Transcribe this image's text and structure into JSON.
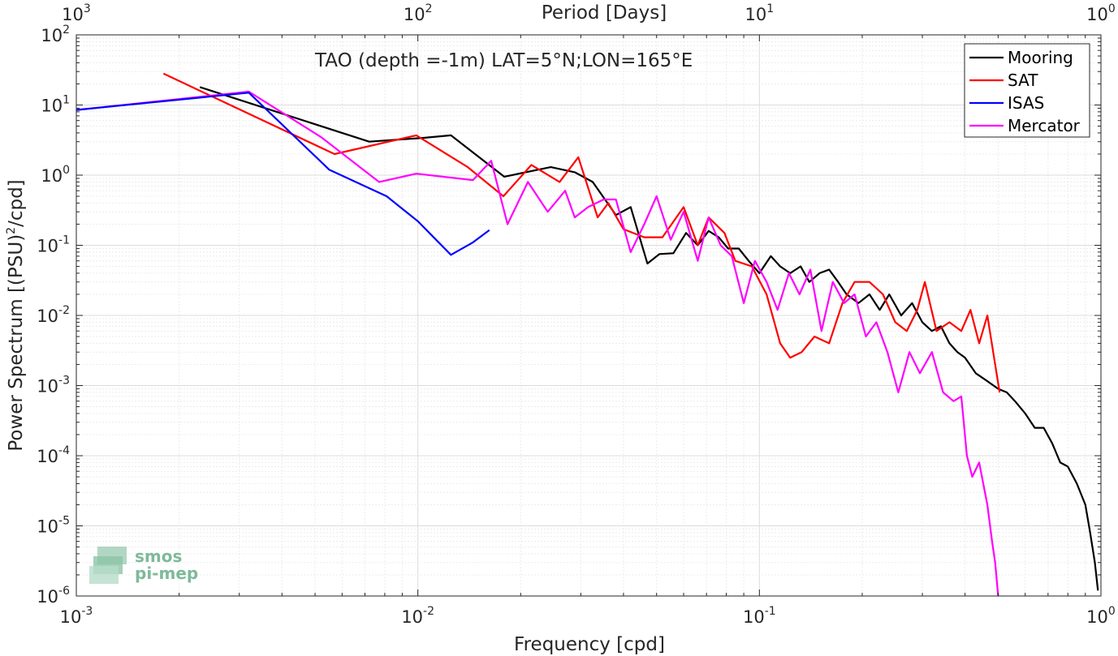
{
  "chart_data": {
    "type": "line",
    "title": "TAO (depth =-1m) LAT=5°N;LON=165°E",
    "xlabel": "Frequency [cpd]",
    "ylabel": "Power Spectrum [(PSU)",
    "ylabel_sup": "2",
    "ylabel_end": "/cpd]",
    "top_xlabel": "Period [Days]",
    "xscale": "log",
    "yscale": "log",
    "xlim": [
      0.001,
      1
    ],
    "ylim": [
      1e-06,
      100
    ],
    "grid": true,
    "legend_position": "top-right",
    "x_ticks": [
      {
        "base": "10",
        "exp": "-3"
      },
      {
        "base": "10",
        "exp": "-2"
      },
      {
        "base": "10",
        "exp": "-1"
      },
      {
        "base": "10",
        "exp": "0"
      }
    ],
    "top_ticks": [
      {
        "base": "10",
        "exp": "3"
      },
      {
        "base": "10",
        "exp": "2"
      },
      {
        "base": "10",
        "exp": "1"
      },
      {
        "base": "10",
        "exp": "0"
      }
    ],
    "y_ticks": [
      {
        "base": "10",
        "exp": "2"
      },
      {
        "base": "10",
        "exp": "1"
      },
      {
        "base": "10",
        "exp": "0"
      },
      {
        "base": "10",
        "exp": "-1"
      },
      {
        "base": "10",
        "exp": "-2"
      },
      {
        "base": "10",
        "exp": "-3"
      },
      {
        "base": "10",
        "exp": "-4"
      },
      {
        "base": "10",
        "exp": "-5"
      },
      {
        "base": "10",
        "exp": "-6"
      }
    ],
    "series": [
      {
        "name": "Mooring",
        "color": "#000000",
        "points": [
          [
            0.0023,
            18
          ],
          [
            0.0072,
            3.0
          ],
          [
            0.0104,
            3.4
          ],
          [
            0.0125,
            3.7
          ],
          [
            0.0179,
            0.95
          ],
          [
            0.0245,
            1.3
          ],
          [
            0.0288,
            1.1
          ],
          [
            0.0325,
            0.8
          ],
          [
            0.038,
            0.27
          ],
          [
            0.042,
            0.35
          ],
          [
            0.047,
            0.055
          ],
          [
            0.051,
            0.075
          ],
          [
            0.056,
            0.077
          ],
          [
            0.061,
            0.15
          ],
          [
            0.066,
            0.1
          ],
          [
            0.071,
            0.16
          ],
          [
            0.076,
            0.13
          ],
          [
            0.081,
            0.09
          ],
          [
            0.087,
            0.09
          ],
          [
            0.093,
            0.06
          ],
          [
            0.1,
            0.04
          ],
          [
            0.108,
            0.07
          ],
          [
            0.115,
            0.05
          ],
          [
            0.123,
            0.04
          ],
          [
            0.132,
            0.05
          ],
          [
            0.14,
            0.03
          ],
          [
            0.15,
            0.04
          ],
          [
            0.16,
            0.045
          ],
          [
            0.17,
            0.03
          ],
          [
            0.18,
            0.02
          ],
          [
            0.195,
            0.015
          ],
          [
            0.21,
            0.02
          ],
          [
            0.225,
            0.012
          ],
          [
            0.24,
            0.02
          ],
          [
            0.26,
            0.01
          ],
          [
            0.28,
            0.015
          ],
          [
            0.3,
            0.008
          ],
          [
            0.32,
            0.006
          ],
          [
            0.34,
            0.007
          ],
          [
            0.36,
            0.004
          ],
          [
            0.38,
            0.003
          ],
          [
            0.4,
            0.0025
          ],
          [
            0.43,
            0.0015
          ],
          [
            0.46,
            0.0012
          ],
          [
            0.5,
            0.0009
          ],
          [
            0.53,
            0.0008
          ],
          [
            0.56,
            0.0006
          ],
          [
            0.6,
            0.0004
          ],
          [
            0.64,
            0.00025
          ],
          [
            0.68,
            0.00025
          ],
          [
            0.72,
            0.00015
          ],
          [
            0.76,
            8e-05
          ],
          [
            0.8,
            7e-05
          ],
          [
            0.85,
            4e-05
          ],
          [
            0.9,
            2e-05
          ],
          [
            0.93,
            8e-06
          ],
          [
            0.96,
            3e-06
          ],
          [
            0.98,
            1.2e-06
          ]
        ]
      },
      {
        "name": "SAT",
        "color": "#ff0000",
        "points": [
          [
            0.0018,
            28
          ],
          [
            0.0057,
            2.0
          ],
          [
            0.0099,
            3.7
          ],
          [
            0.014,
            1.3
          ],
          [
            0.0178,
            0.5
          ],
          [
            0.0215,
            1.4
          ],
          [
            0.026,
            0.8
          ],
          [
            0.0295,
            1.8
          ],
          [
            0.0336,
            0.25
          ],
          [
            0.0361,
            0.4
          ],
          [
            0.04,
            0.17
          ],
          [
            0.046,
            0.13
          ],
          [
            0.052,
            0.13
          ],
          [
            0.06,
            0.35
          ],
          [
            0.066,
            0.1
          ],
          [
            0.071,
            0.25
          ],
          [
            0.079,
            0.15
          ],
          [
            0.085,
            0.06
          ],
          [
            0.095,
            0.05
          ],
          [
            0.105,
            0.02
          ],
          [
            0.115,
            0.004
          ],
          [
            0.123,
            0.0025
          ],
          [
            0.133,
            0.003
          ],
          [
            0.145,
            0.005
          ],
          [
            0.16,
            0.004
          ],
          [
            0.175,
            0.015
          ],
          [
            0.19,
            0.03
          ],
          [
            0.21,
            0.03
          ],
          [
            0.23,
            0.02
          ],
          [
            0.25,
            0.008
          ],
          [
            0.27,
            0.006
          ],
          [
            0.29,
            0.012
          ],
          [
            0.305,
            0.03
          ],
          [
            0.33,
            0.006
          ],
          [
            0.36,
            0.008
          ],
          [
            0.39,
            0.006
          ],
          [
            0.415,
            0.012
          ],
          [
            0.44,
            0.004
          ],
          [
            0.465,
            0.01
          ],
          [
            0.49,
            0.002
          ],
          [
            0.505,
            0.0008
          ]
        ]
      },
      {
        "name": "ISAS",
        "color": "#0000ff",
        "points": [
          [
            0.001,
            8.5
          ],
          [
            0.0032,
            15
          ],
          [
            0.0055,
            1.2
          ],
          [
            0.0081,
            0.5
          ],
          [
            0.01,
            0.22
          ],
          [
            0.0125,
            0.073
          ],
          [
            0.0145,
            0.11
          ],
          [
            0.0162,
            0.165
          ]
        ]
      },
      {
        "name": "Mercator",
        "color": "#ff00ff",
        "points": [
          [
            0.001,
            8.5
          ],
          [
            0.0032,
            15.5
          ],
          [
            0.0052,
            3.5
          ],
          [
            0.0077,
            0.8
          ],
          [
            0.0099,
            1.05
          ],
          [
            0.0145,
            0.85
          ],
          [
            0.0164,
            1.6
          ],
          [
            0.0183,
            0.2
          ],
          [
            0.021,
            0.8
          ],
          [
            0.024,
            0.3
          ],
          [
            0.027,
            0.6
          ],
          [
            0.0288,
            0.25
          ],
          [
            0.0315,
            0.35
          ],
          [
            0.035,
            0.45
          ],
          [
            0.038,
            0.45
          ],
          [
            0.042,
            0.08
          ],
          [
            0.046,
            0.2
          ],
          [
            0.05,
            0.5
          ],
          [
            0.055,
            0.12
          ],
          [
            0.06,
            0.3
          ],
          [
            0.066,
            0.06
          ],
          [
            0.071,
            0.25
          ],
          [
            0.077,
            0.1
          ],
          [
            0.083,
            0.07
          ],
          [
            0.09,
            0.015
          ],
          [
            0.097,
            0.06
          ],
          [
            0.105,
            0.03
          ],
          [
            0.113,
            0.012
          ],
          [
            0.122,
            0.04
          ],
          [
            0.131,
            0.02
          ],
          [
            0.141,
            0.045
          ],
          [
            0.152,
            0.006
          ],
          [
            0.164,
            0.03
          ],
          [
            0.177,
            0.015
          ],
          [
            0.19,
            0.02
          ],
          [
            0.205,
            0.005
          ],
          [
            0.22,
            0.008
          ],
          [
            0.237,
            0.003
          ],
          [
            0.255,
            0.0008
          ],
          [
            0.275,
            0.003
          ],
          [
            0.295,
            0.0015
          ],
          [
            0.32,
            0.003
          ],
          [
            0.345,
            0.0008
          ],
          [
            0.37,
            0.0006
          ],
          [
            0.39,
            0.0007
          ],
          [
            0.405,
            0.0001
          ],
          [
            0.42,
            5e-05
          ],
          [
            0.44,
            8e-05
          ],
          [
            0.465,
            2e-05
          ],
          [
            0.48,
            6e-06
          ],
          [
            0.49,
            3e-06
          ],
          [
            0.5,
            1e-06
          ]
        ]
      }
    ]
  },
  "logo": {
    "line1": "smos",
    "line2": "pi-mep"
  }
}
